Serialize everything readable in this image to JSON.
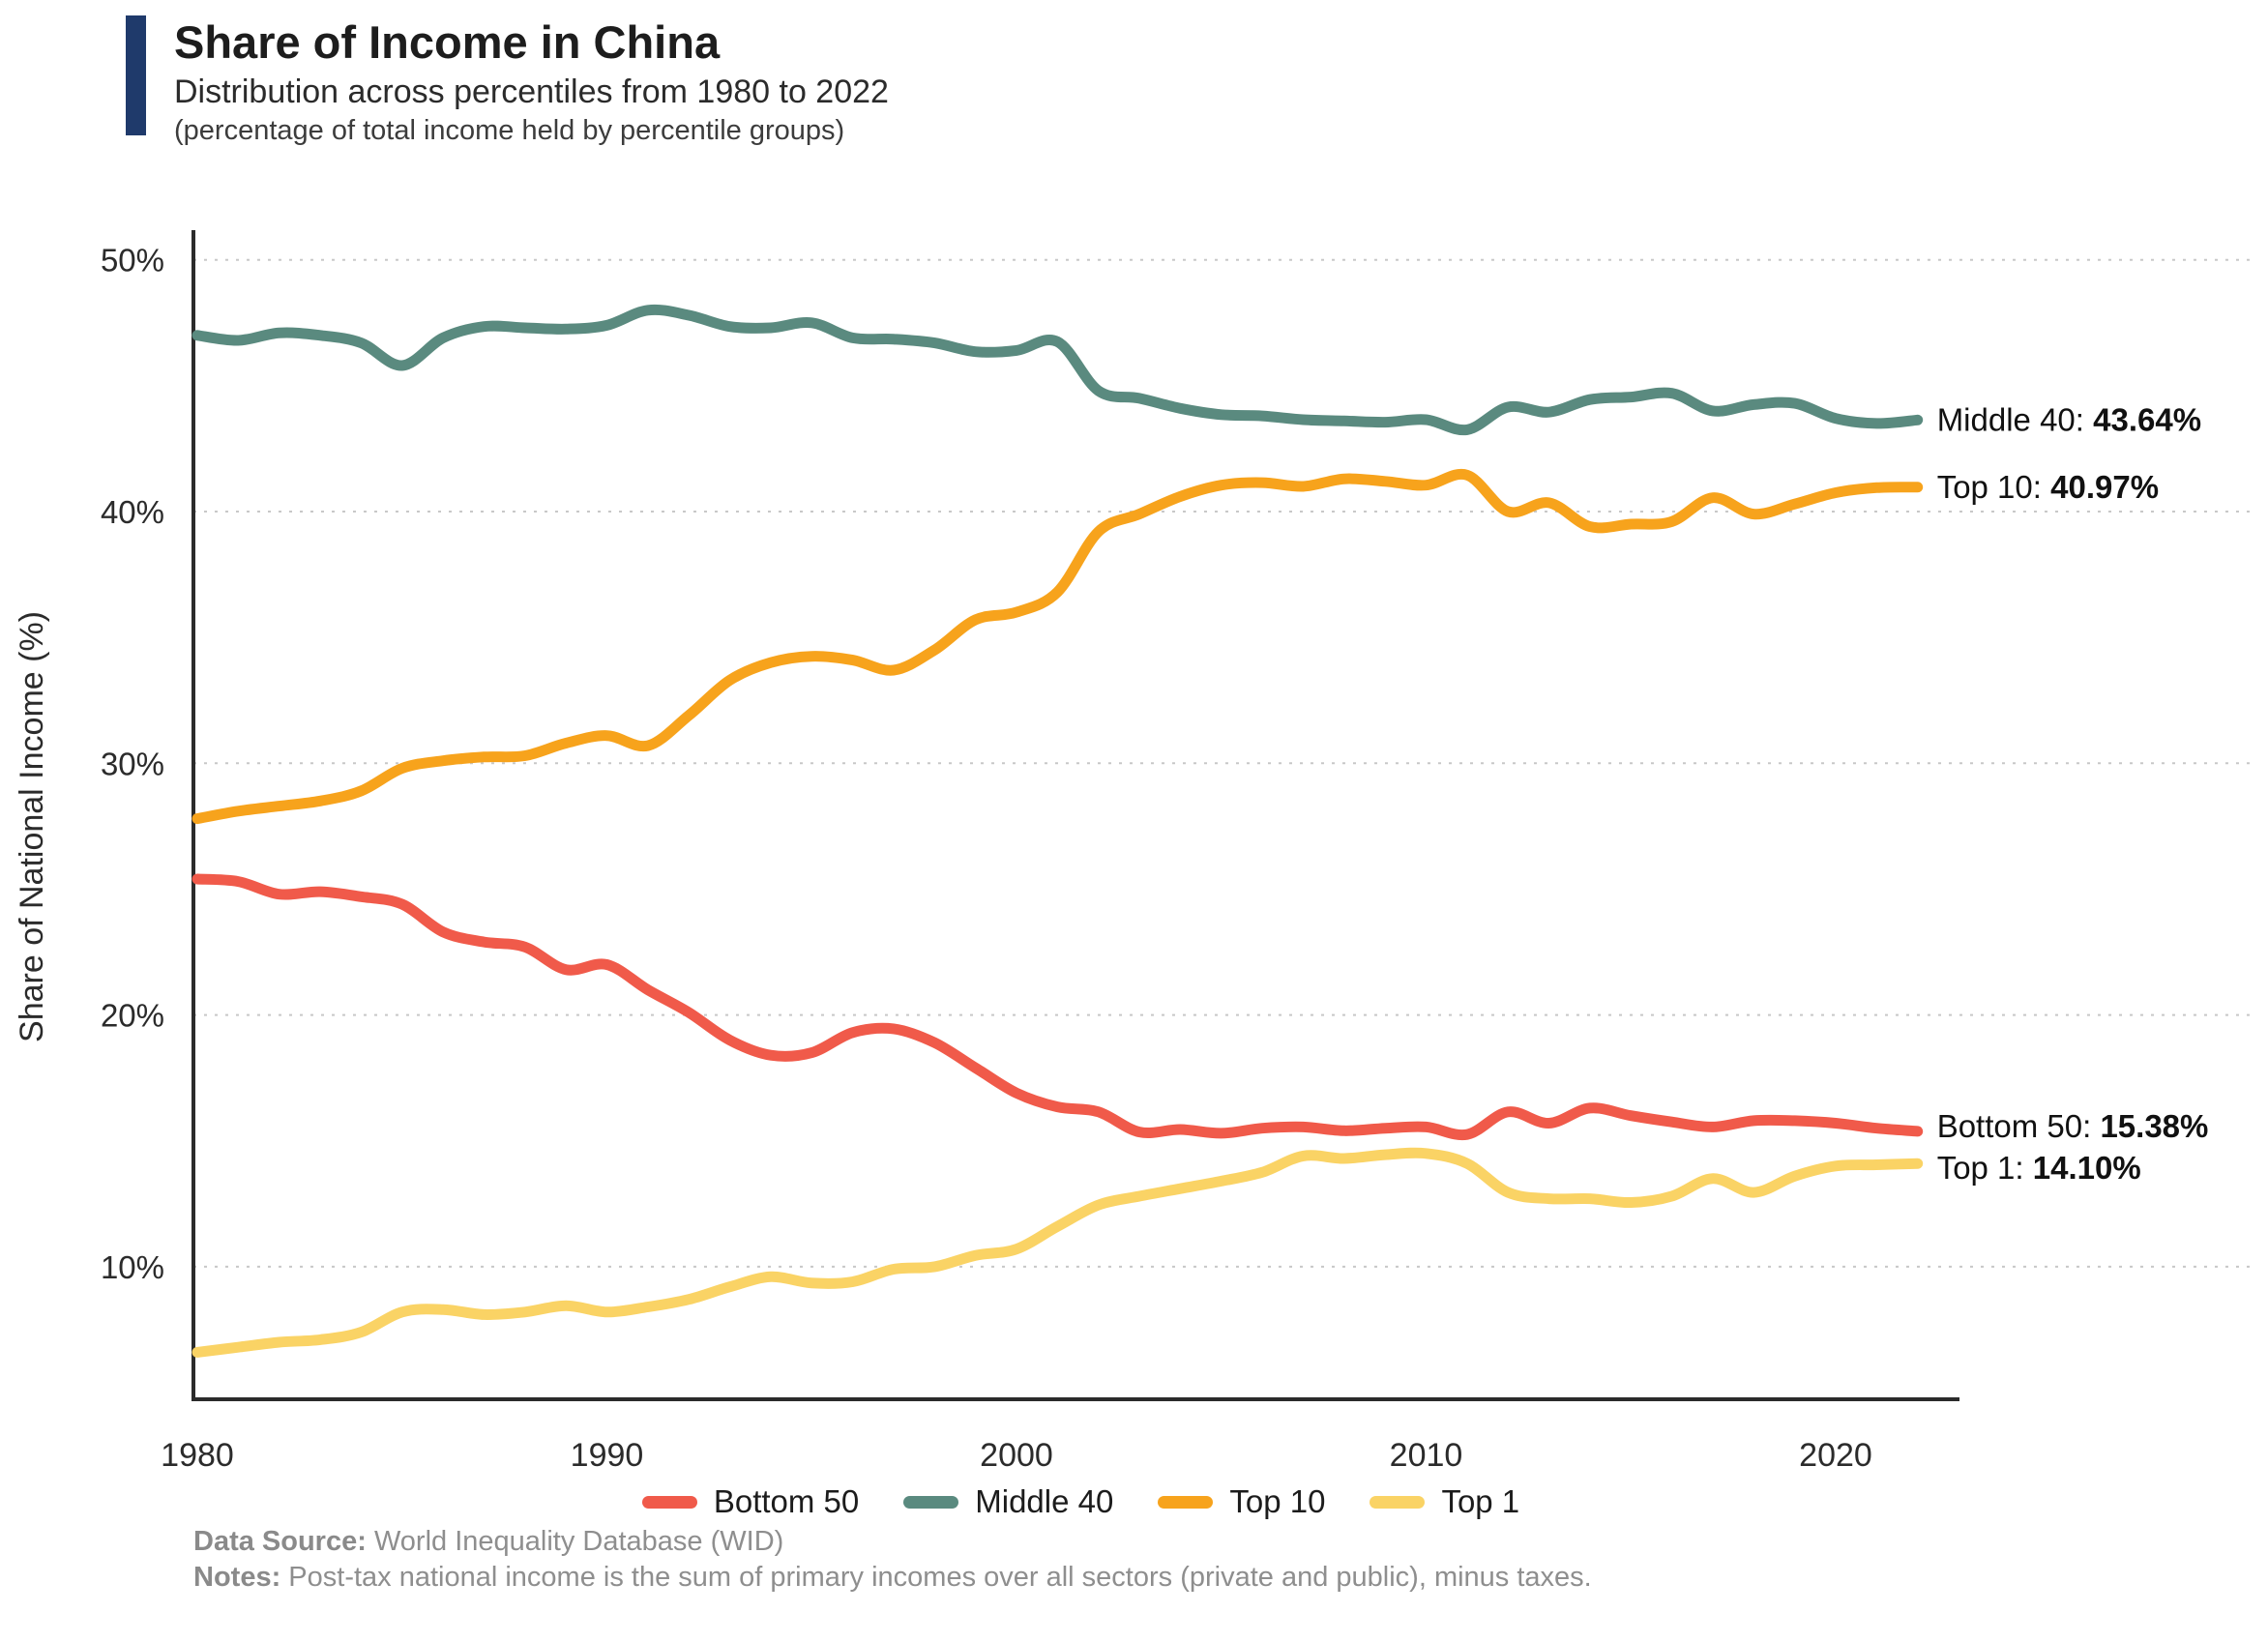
{
  "header": {
    "title": "Share of Income in China",
    "subtitle": "Distribution across percentiles from 1980 to 2022",
    "note": "(percentage of total income held by percentile groups)",
    "accent_color": "#1F3A6B"
  },
  "chart_data": {
    "type": "line",
    "title": "Share of Income in China",
    "xlabel": "",
    "ylabel": "Share of National Income (%)",
    "grid": "horizontal-dotted",
    "legend_position": "bottom-center",
    "xlim": [
      1979.9,
      2023.2
    ],
    "ylim": [
      4.8,
      50.6
    ],
    "x_ticks": [
      1980,
      1990,
      2000,
      2010,
      2020
    ],
    "y_ticks": [
      {
        "value": 50,
        "label": "50%"
      },
      {
        "value": 40,
        "label": "40%"
      },
      {
        "value": 30,
        "label": "30%"
      },
      {
        "value": 20,
        "label": "20%"
      },
      {
        "value": 10,
        "label": "10%"
      }
    ],
    "x": [
      1980,
      1981,
      1982,
      1983,
      1984,
      1985,
      1986,
      1987,
      1988,
      1989,
      1990,
      1991,
      1992,
      1993,
      1994,
      1995,
      1996,
      1997,
      1998,
      1999,
      2000,
      2001,
      2002,
      2003,
      2004,
      2005,
      2006,
      2007,
      2008,
      2009,
      2010,
      2011,
      2012,
      2013,
      2014,
      2015,
      2016,
      2017,
      2018,
      2019,
      2020,
      2021,
      2022
    ],
    "series": [
      {
        "label": "Bottom 50",
        "color": "#F05A4A",
        "end_label_prefix": "Bottom 50: ",
        "end_value": "15.38%",
        "values": [
          25.4,
          25.3,
          24.8,
          24.9,
          24.7,
          24.4,
          23.3,
          22.9,
          22.7,
          21.8,
          22.0,
          21.0,
          20.1,
          19.0,
          18.4,
          18.5,
          19.3,
          19.45,
          18.9,
          17.9,
          16.9,
          16.35,
          16.15,
          15.35,
          15.45,
          15.3,
          15.5,
          15.55,
          15.4,
          15.5,
          15.55,
          15.25,
          16.15,
          15.7,
          16.3,
          16.0,
          15.75,
          15.55,
          15.8,
          15.8,
          15.7,
          15.5,
          15.38
        ]
      },
      {
        "label": "Middle 40",
        "color": "#5A8A7F",
        "end_label_prefix": "Middle 40: ",
        "end_value": "43.64%",
        "values": [
          47.0,
          46.8,
          47.1,
          47.0,
          46.7,
          45.8,
          46.9,
          47.35,
          47.3,
          47.25,
          47.4,
          48.0,
          47.8,
          47.35,
          47.3,
          47.5,
          46.9,
          46.85,
          46.7,
          46.35,
          46.4,
          46.75,
          44.8,
          44.5,
          44.1,
          43.85,
          43.8,
          43.65,
          43.6,
          43.55,
          43.65,
          43.25,
          44.15,
          43.95,
          44.45,
          44.55,
          44.7,
          44.0,
          44.25,
          44.3,
          43.7,
          43.5,
          43.64
        ]
      },
      {
        "label": "Top 10",
        "color": "#F7A31C",
        "end_label_prefix": "Top 10: ",
        "end_value": "40.97%",
        "values": [
          27.8,
          28.1,
          28.3,
          28.5,
          28.9,
          29.8,
          30.1,
          30.25,
          30.3,
          30.8,
          31.1,
          30.7,
          31.9,
          33.3,
          34.0,
          34.25,
          34.1,
          33.7,
          34.5,
          35.7,
          36.0,
          36.8,
          39.2,
          39.9,
          40.6,
          41.05,
          41.15,
          41.0,
          41.3,
          41.2,
          41.05,
          41.45,
          40.0,
          40.35,
          39.4,
          39.5,
          39.6,
          40.55,
          39.9,
          40.3,
          40.75,
          40.95,
          40.97
        ]
      },
      {
        "label": "Top 1",
        "color": "#FAD365",
        "end_label_prefix": "Top 1: ",
        "end_value": "14.10%",
        "values": [
          6.6,
          6.8,
          7.0,
          7.1,
          7.4,
          8.2,
          8.3,
          8.1,
          8.2,
          8.45,
          8.2,
          8.4,
          8.7,
          9.2,
          9.6,
          9.35,
          9.4,
          9.9,
          10.0,
          10.45,
          10.7,
          11.6,
          12.45,
          12.8,
          13.1,
          13.4,
          13.75,
          14.4,
          14.3,
          14.45,
          14.5,
          14.1,
          12.95,
          12.7,
          12.7,
          12.55,
          12.8,
          13.5,
          12.95,
          13.6,
          14.0,
          14.05,
          14.1
        ]
      }
    ]
  },
  "footer": {
    "source_label": "Data Source:",
    "source_text": " World Inequality Database (WID)",
    "notes_label": "Notes:",
    "notes_text": " Post-tax national income is the sum of primary incomes over all sectors (private and public), minus taxes."
  }
}
